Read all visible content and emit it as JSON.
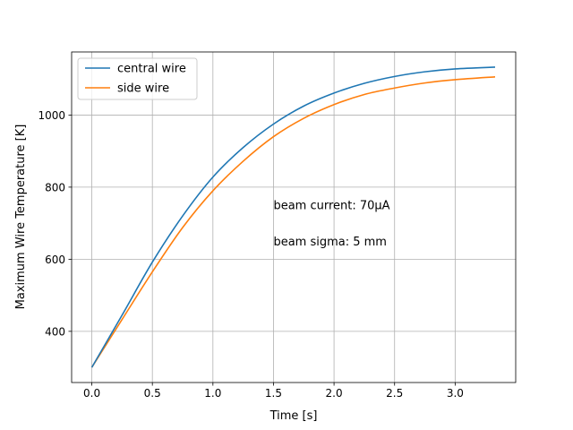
{
  "chart_data": {
    "type": "line",
    "title": "",
    "xlabel": "Time [s]",
    "ylabel": "Maximum Wire Temperature [K]",
    "xlim": [
      -0.1667,
      3.5
    ],
    "ylim": [
      258,
      1175
    ],
    "xticks": [
      0.0,
      0.5,
      1.0,
      1.5,
      2.0,
      2.5,
      3.0
    ],
    "xtick_labels": [
      "0.0",
      "0.5",
      "1.0",
      "1.5",
      "2.0",
      "2.5",
      "3.0"
    ],
    "yticks": [
      400,
      600,
      800,
      1000
    ],
    "ytick_labels": [
      "400",
      "600",
      "800",
      "1000"
    ],
    "grid": true,
    "legend_position": "top-left",
    "series": [
      {
        "name": "central wire",
        "color": "#1f77b4",
        "x": [
          0.0,
          0.25,
          0.5,
          0.75,
          1.0,
          1.25,
          1.5,
          1.75,
          2.0,
          2.25,
          2.5,
          2.75,
          3.0,
          3.33
        ],
        "y": [
          300,
          445,
          592,
          720,
          828,
          910,
          975,
          1025,
          1061,
          1088,
          1107,
          1120,
          1128,
          1133
        ]
      },
      {
        "name": "side wire",
        "color": "#ff7f0e",
        "x": [
          0.0,
          0.25,
          0.5,
          0.75,
          1.0,
          1.25,
          1.5,
          1.75,
          2.0,
          2.25,
          2.5,
          2.75,
          3.0,
          3.33
        ],
        "y": [
          300,
          433,
          565,
          688,
          790,
          872,
          940,
          991,
          1029,
          1057,
          1075,
          1089,
          1098,
          1106
        ]
      }
    ],
    "annotations": [
      {
        "text": "beam current: 70μA",
        "x": 1.5,
        "y": 750
      },
      {
        "text": "beam sigma: 5 mm",
        "x": 1.5,
        "y": 650
      }
    ]
  }
}
